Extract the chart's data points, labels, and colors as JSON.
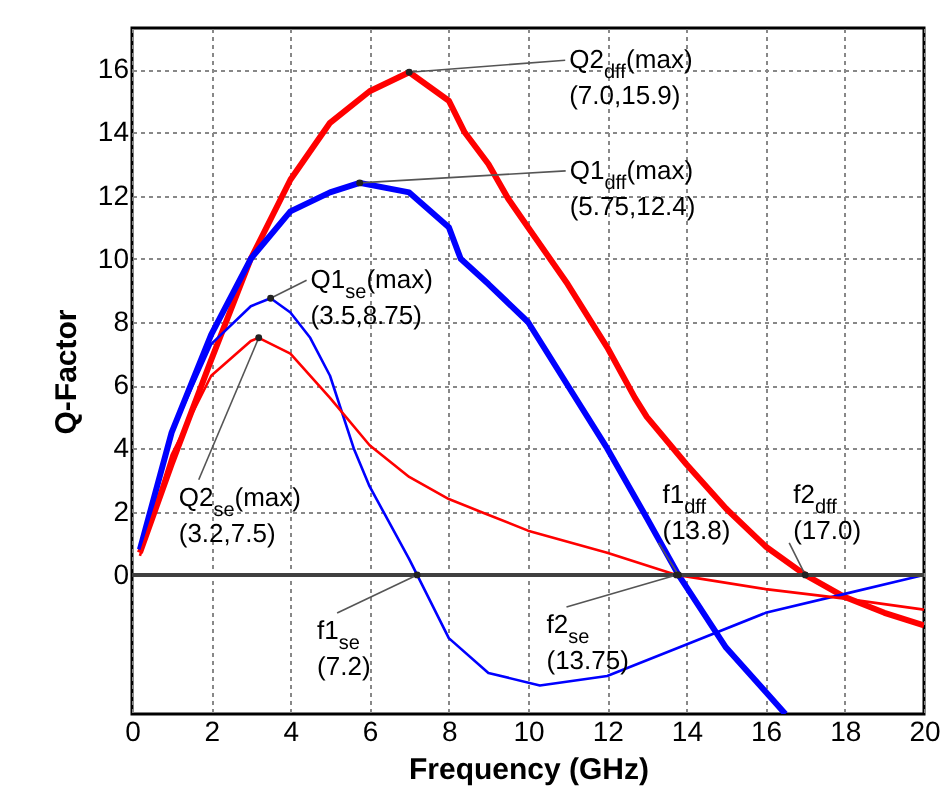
{
  "chart_data": {
    "type": "line",
    "xlabel": "Frequency (GHz)",
    "ylabel": "Q-Factor",
    "xlim": [
      0,
      20
    ],
    "xticks": [
      0,
      2,
      4,
      6,
      8,
      10,
      12,
      14,
      16,
      18,
      20
    ],
    "ylim": [
      -4.4,
      17.3
    ],
    "yticks": [
      0,
      2,
      4,
      6,
      8,
      10,
      12,
      14,
      16
    ],
    "grid": true,
    "line_style": "solid",
    "marker": "none",
    "ref_lines": [
      {
        "axis": "y",
        "value": 0,
        "color": "#404040"
      }
    ],
    "series": [
      {
        "color": "#ff0000",
        "x": [
          0.2,
          1,
          2,
          3,
          4,
          5,
          6,
          7,
          8,
          8.4,
          9,
          9.5,
          10,
          11,
          12,
          12.7,
          13,
          14,
          15,
          16,
          17,
          18,
          19,
          20
        ],
        "values": [
          0.7,
          3.5,
          6.8,
          10,
          12.5,
          14.3,
          15.3,
          15.9,
          15,
          14,
          13,
          11.9,
          11,
          9.2,
          7.2,
          5.6,
          5,
          3.5,
          2.1,
          0.9,
          0,
          -0.7,
          -1.2,
          -1.6
        ]
      },
      {
        "color": "#0000ff",
        "x": [
          0.2,
          1,
          2,
          3,
          4,
          5,
          5.75,
          7,
          8,
          8.3,
          9,
          10,
          11,
          12,
          13,
          13.8,
          15,
          16,
          16.5
        ],
        "values": [
          0.8,
          4.5,
          7.6,
          10,
          11.5,
          12.1,
          12.4,
          12.1,
          11,
          10,
          9.2,
          8,
          6,
          4,
          1.8,
          0,
          -2.3,
          -3.7,
          -4.4
        ]
      },
      {
        "color": "#0000ff",
        "x": [
          0.2,
          1,
          2,
          3,
          3.5,
          4,
          4.5,
          5,
          5.6,
          6,
          7,
          7.2,
          8,
          9,
          10.3,
          12,
          14,
          16,
          18,
          20
        ],
        "values": [
          0.8,
          4.5,
          7.3,
          8.5,
          8.75,
          8.3,
          7.5,
          6.3,
          4,
          2.8,
          0.5,
          0,
          -2,
          -3.1,
          -3.5,
          -3.2,
          -2.2,
          -1.2,
          -0.6,
          0
        ]
      },
      {
        "color": "#ff0000",
        "x": [
          0.2,
          1,
          2,
          3,
          3.2,
          4,
          5,
          6,
          7,
          8,
          8.8,
          10,
          12,
          13.75,
          16,
          18,
          20
        ],
        "values": [
          0.6,
          3.8,
          6.3,
          7.4,
          7.5,
          7.0,
          5.6,
          4.1,
          3.1,
          2.4,
          2.0,
          1.4,
          0.7,
          0,
          -0.45,
          -0.75,
          -1.1
        ]
      }
    ],
    "annotations": [
      {
        "text": "Q2$_{dff}$(max)\n(7.0,15.9)",
        "x": 7.0,
        "y": 15.9
      },
      {
        "text": "Q1$_{dff}$(max)\n(5.75,12.4)",
        "x": 5.75,
        "y": 12.4
      },
      {
        "text": "Q1$_{se}$(max)\n(3.5,8.75)",
        "x": 3.5,
        "y": 8.75
      },
      {
        "text": "Q2$_{se}$(max)\n(3.2,7.5)",
        "x": 3.2,
        "y": 7.5
      },
      {
        "text": "f1$_{se}$\n(7.2)",
        "x": 7.2,
        "y": 0
      },
      {
        "text": "f2$_{se}$\n(13.75)",
        "x": 13.75,
        "y": 0
      },
      {
        "text": "f1$_{dff}$\n(13.8)",
        "x": 13.8,
        "y": 0
      },
      {
        "text": "f2$_{dff}$\n(17.0)",
        "x": 17.0,
        "y": 0
      }
    ]
  }
}
